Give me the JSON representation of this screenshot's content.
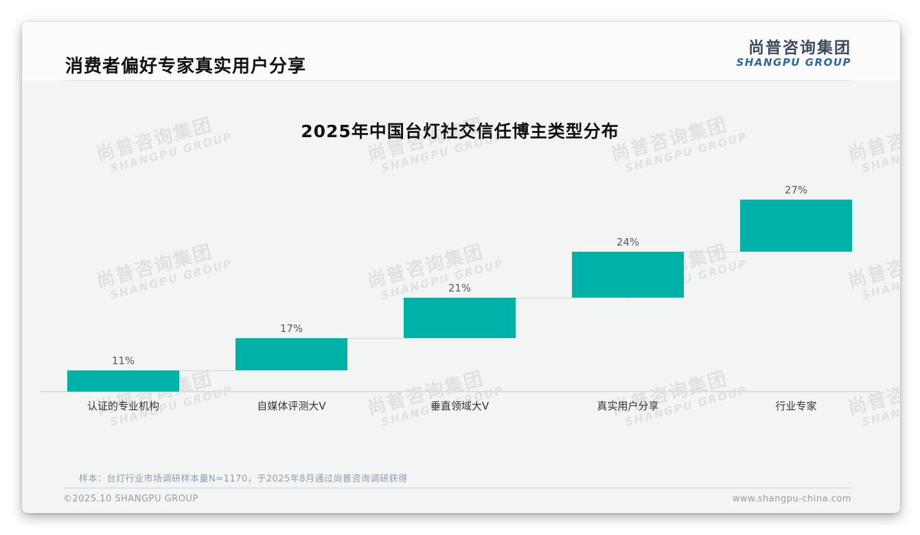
{
  "page": {
    "header": {
      "title": "消费者偏好专家真实用户分享"
    },
    "logo": {
      "cn": "尚普咨询集团",
      "en": "SHANGPU GROUP",
      "cn_color": "#3d4a5c",
      "en_color": "#2b67a5"
    },
    "watermark": {
      "cn": "尚普咨询集团",
      "en": "SHANGPU GROUP"
    },
    "footnote": "样本：台灯行业市场调研样本量N=1170，于2025年8月通过尚普咨询调研获得",
    "footer": {
      "left": "©2025.10 SHANGPU GROUP",
      "right": "www.shangpu-china.com"
    }
  },
  "chart_data": {
    "type": "bar",
    "subtype": "waterfall-step",
    "title": "2025年中国台灯社交信任博主类型分布",
    "categories": [
      "认证的专业机构",
      "自媒体评测大V",
      "垂直领域大V",
      "真实用户分享",
      "行业专家"
    ],
    "values": [
      11,
      17,
      21,
      24,
      27
    ],
    "cumulative_start": [
      0,
      11,
      28,
      49,
      73
    ],
    "data_labels": [
      "11%",
      "17%",
      "21%",
      "24%",
      "27%"
    ],
    "unit": "%",
    "ylim": [
      0,
      100
    ],
    "bar_color": "#00b1a7",
    "connector_color": "#d6d6d6",
    "grid": false,
    "y_axis_visible": false,
    "legend": "none"
  }
}
